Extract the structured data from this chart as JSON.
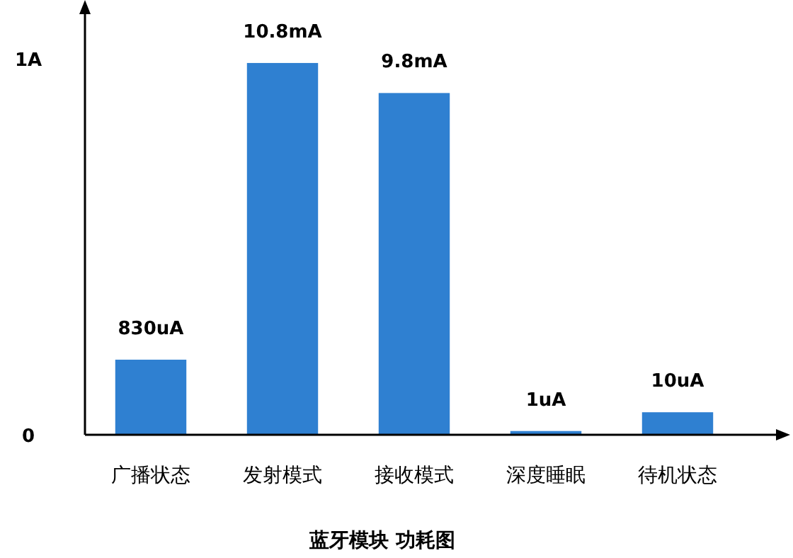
{
  "chart_data": {
    "type": "bar",
    "title": "蓝牙模块 功耗图",
    "categories": [
      "广播状态",
      "发射模式",
      "接收模式",
      "深度睡眠",
      "待机状态"
    ],
    "values": [
      0.2,
      0.99,
      0.91,
      0.01,
      0.06
    ],
    "annotations": [
      {
        "text": "830uA",
        "x": "广播状态",
        "y": 0.2
      },
      {
        "text": "10.8mA",
        "x": "发射模式",
        "y": 0.99
      },
      {
        "text": "9.8mA",
        "x": "接收模式",
        "y": 0.91
      },
      {
        "text": "1uA",
        "x": "深度睡眠",
        "y": 0.01
      },
      {
        "text": "10uA",
        "x": "待机状态",
        "y": 0.06
      }
    ],
    "color": "#2f80d1",
    "ylim": [
      0,
      1.12
    ],
    "yticks": [
      {
        "value": 0,
        "label": "0"
      },
      {
        "value": 1,
        "label": "1A"
      }
    ]
  }
}
